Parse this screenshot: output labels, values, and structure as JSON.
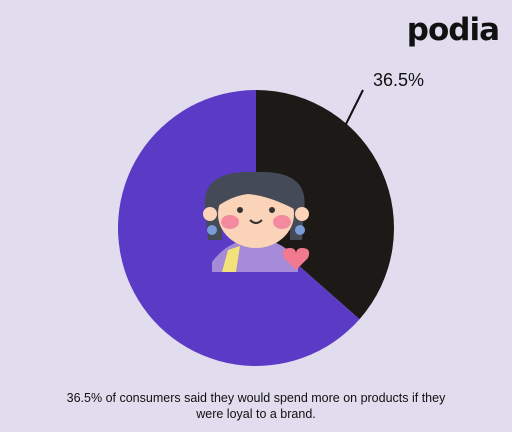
{
  "brand": "podia",
  "chart_data": {
    "type": "pie",
    "caption": "36.5% of consumers said they would spend more on products if they were loyal to a brand.",
    "categories": [
      null,
      null
    ],
    "values": [
      36.5,
      63.5
    ],
    "value_labels": [
      "36.5%",
      null
    ],
    "colors": [
      "#1c1917",
      "#5b3bc6"
    ]
  }
}
